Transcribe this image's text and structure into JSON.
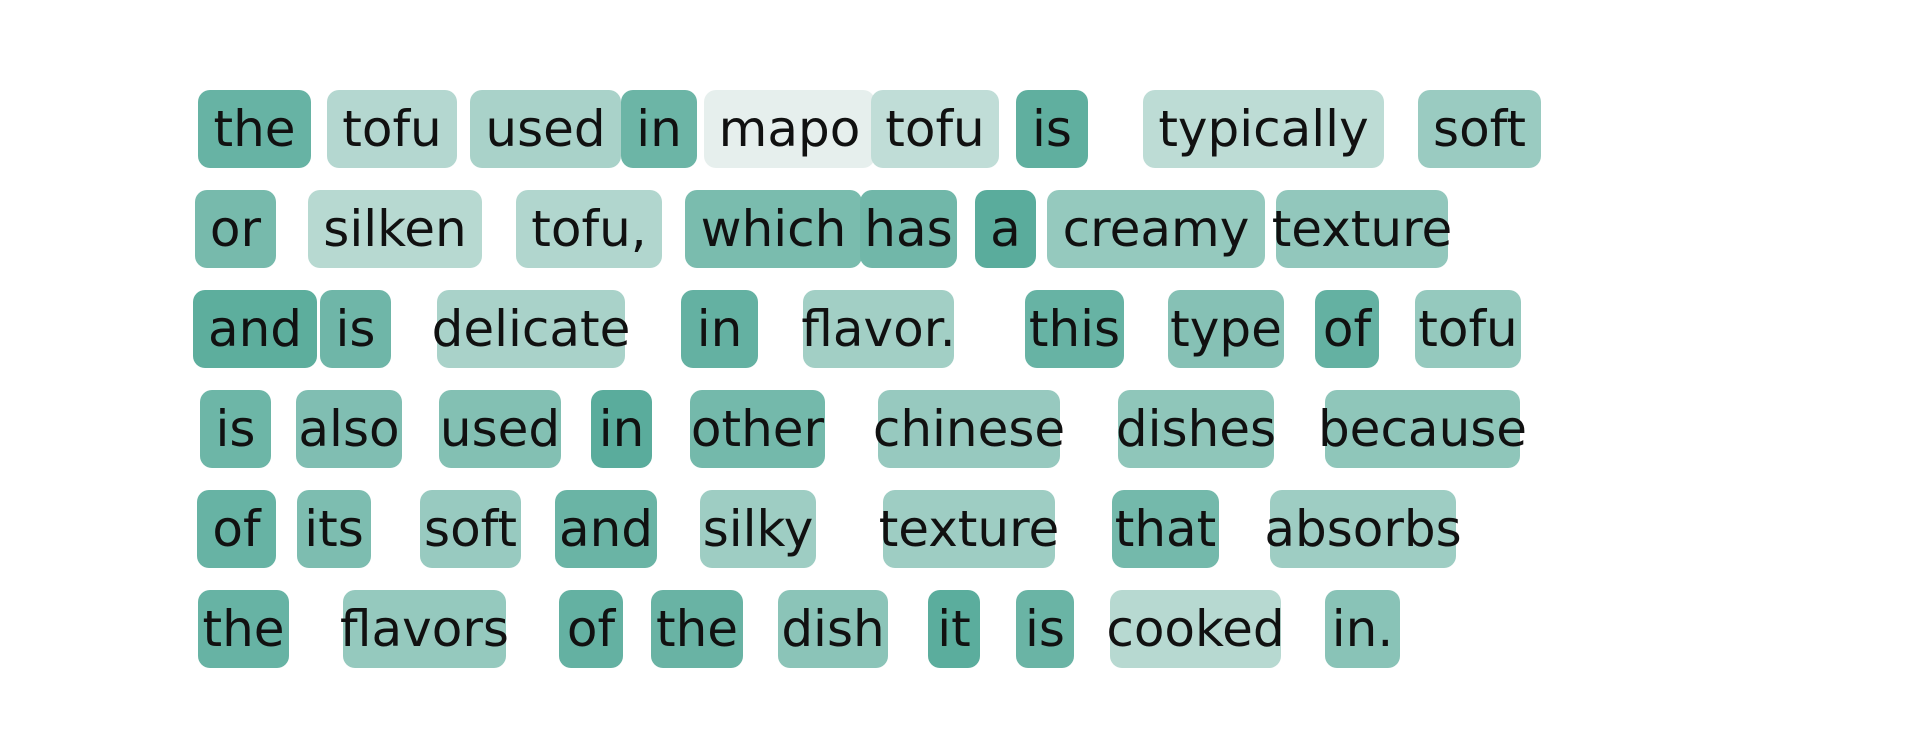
{
  "color_scale": {
    "low": "#eef3f1",
    "high": "#55aa99"
  },
  "rows": [
    {
      "tokens": [
        {
          "text": "the",
          "weight": 0.88
        },
        {
          "text": "tofu",
          "weight": 0.38
        },
        {
          "text": "used",
          "weight": 0.45
        },
        {
          "text": "in",
          "weight": 0.85
        },
        {
          "text": "mapo",
          "weight": 0.05
        },
        {
          "text": "tofu",
          "weight": 0.3
        },
        {
          "text": "is",
          "weight": 0.93
        },
        {
          "text": "typically",
          "weight": 0.32
        },
        {
          "text": "soft",
          "weight": 0.55
        }
      ]
    },
    {
      "tokens": [
        {
          "text": "or",
          "weight": 0.78
        },
        {
          "text": "silken",
          "weight": 0.36
        },
        {
          "text": "tofu,",
          "weight": 0.4
        },
        {
          "text": "which",
          "weight": 0.76
        },
        {
          "text": "has",
          "weight": 0.82
        },
        {
          "text": "a",
          "weight": 0.97
        },
        {
          "text": "creamy",
          "weight": 0.58
        },
        {
          "text": "texture",
          "weight": 0.6
        }
      ]
    },
    {
      "tokens": [
        {
          "text": "and",
          "weight": 0.95
        },
        {
          "text": "is",
          "weight": 0.83
        },
        {
          "text": "delicate",
          "weight": 0.45
        },
        {
          "text": "in",
          "weight": 0.9
        },
        {
          "text": "flavor.",
          "weight": 0.5
        },
        {
          "text": "this",
          "weight": 0.88
        },
        {
          "text": "type",
          "weight": 0.68
        },
        {
          "text": "of",
          "weight": 0.9
        },
        {
          "text": "tofu",
          "weight": 0.58
        }
      ]
    },
    {
      "tokens": [
        {
          "text": "is",
          "weight": 0.84
        },
        {
          "text": "also",
          "weight": 0.72
        },
        {
          "text": "used",
          "weight": 0.7
        },
        {
          "text": "in",
          "weight": 0.97
        },
        {
          "text": "other",
          "weight": 0.8
        },
        {
          "text": "chinese",
          "weight": 0.57
        },
        {
          "text": "dishes",
          "weight": 0.62
        },
        {
          "text": "because",
          "weight": 0.62
        }
      ]
    },
    {
      "tokens": [
        {
          "text": "of",
          "weight": 0.88
        },
        {
          "text": "its",
          "weight": 0.74
        },
        {
          "text": "soft",
          "weight": 0.56
        },
        {
          "text": "and",
          "weight": 0.86
        },
        {
          "text": "silky",
          "weight": 0.52
        },
        {
          "text": "texture",
          "weight": 0.52
        },
        {
          "text": "that",
          "weight": 0.8
        },
        {
          "text": "absorbs",
          "weight": 0.52
        }
      ]
    },
    {
      "tokens": [
        {
          "text": "the",
          "weight": 0.88
        },
        {
          "text": "flavors",
          "weight": 0.58
        },
        {
          "text": "of",
          "weight": 0.9
        },
        {
          "text": "the",
          "weight": 0.87
        },
        {
          "text": "dish",
          "weight": 0.65
        },
        {
          "text": "it",
          "weight": 0.96
        },
        {
          "text": "is",
          "weight": 0.86
        },
        {
          "text": "cooked",
          "weight": 0.36
        },
        {
          "text": "in.",
          "weight": 0.66
        }
      ]
    }
  ]
}
